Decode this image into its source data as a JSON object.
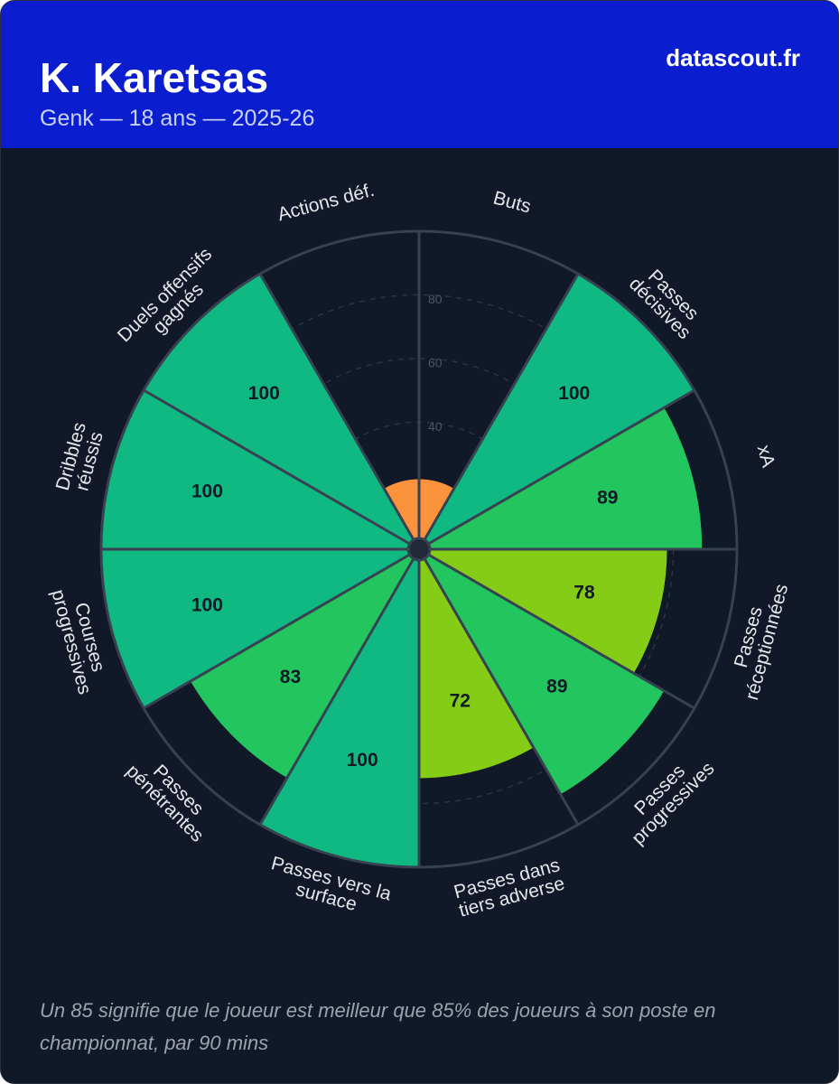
{
  "chart_data": {
    "type": "pizza",
    "title": "K. Karetsas",
    "subtitle": "Genk — 18 ans — 2025-26",
    "source": "datascout.fr",
    "note": "Un 85 signifie que le joueur est meilleur que 85% des joueurs à son poste en championnat, par 90 mins",
    "categories": [
      "Buts",
      "Passes\ndécisives",
      "xA",
      "Passes\nréceptionnées",
      "Passes\nprogressives",
      "Passes dans\ntiers adverse",
      "Passes vers la\nsurface",
      "Passes\npénétrantes",
      "Courses\nprogressives",
      "Dribbles\nréussis",
      "Duels offensifs\ngagnés",
      "Actions déf."
    ],
    "values": [
      22,
      100,
      89,
      78,
      89,
      72,
      100,
      83,
      100,
      100,
      100,
      22
    ],
    "colors": [
      "#fb923c",
      "#10b981",
      "#22c55e",
      "#84cc16",
      "#22c55e",
      "#84cc16",
      "#10b981",
      "#22c55e",
      "#10b981",
      "#10b981",
      "#10b981",
      "#fb923c"
    ],
    "rlim": [
      0,
      100
    ],
    "rticks": [
      40,
      60,
      80
    ]
  }
}
